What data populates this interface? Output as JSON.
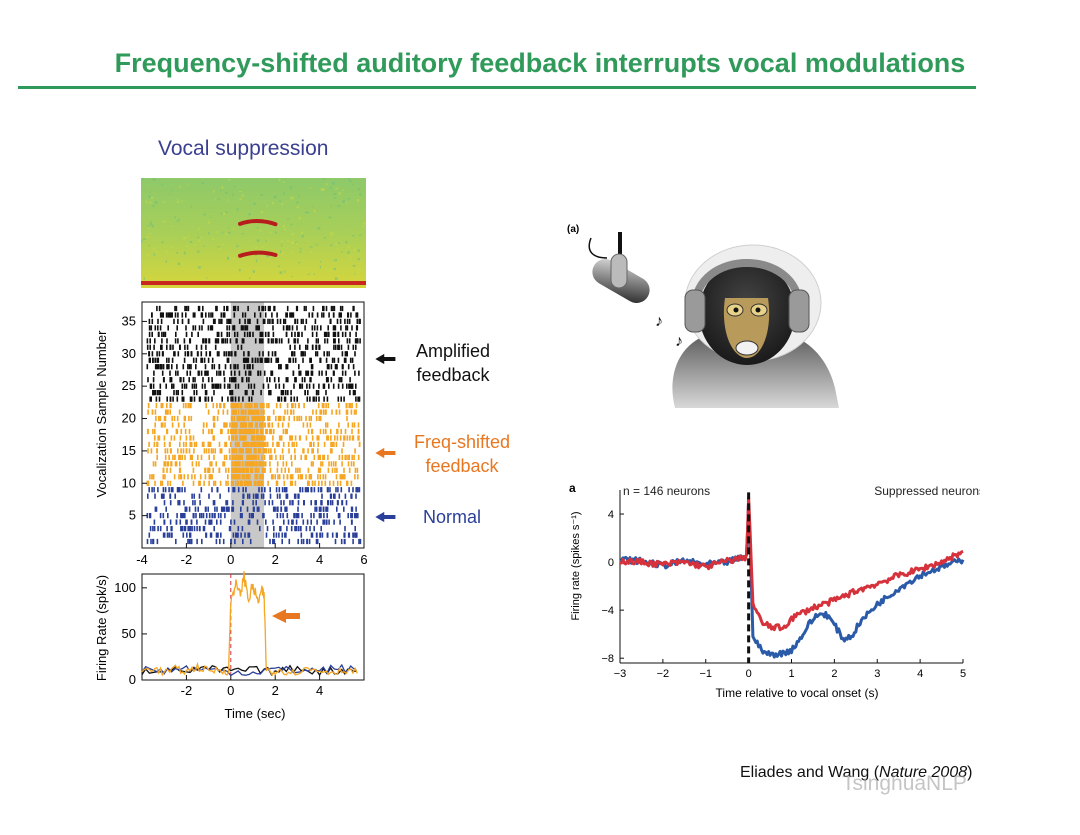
{
  "slide": {
    "title": "Frequency-shifted auditory feedback interrupts vocal modulations",
    "panel_heading": "Vocal suppression",
    "citation_prefix": "Eliades and Wang (",
    "citation_journal": "Nature 2008",
    "citation_suffix": ")",
    "watermark": "TsinghuaNLP"
  },
  "side_labels": {
    "amplified": [
      "Amplified",
      "feedback"
    ],
    "freq_shifted": [
      "Freq-shifted",
      "feedback"
    ],
    "normal": "Normal"
  },
  "colors": {
    "title_green": "#2f9a5a",
    "heading_blue": "#3a3f8f",
    "amplified": "#111111",
    "freq_shifted": "#f5a623",
    "normal": "#2a3f9a",
    "arrow_orange": "#e87722",
    "suppressed_red": "#d6323c",
    "suppressed_blue": "#2a5aa8"
  },
  "illustration": {
    "panel_label": "(a)",
    "icons": [
      "microphone-icon",
      "music-note-icon",
      "monkey-with-headphones"
    ]
  },
  "chart_data": [
    {
      "type": "heatmap",
      "title": "",
      "description_free": true,
      "x_range": [
        -4,
        6
      ],
      "harmonics": [
        {
          "t": [
            0.0,
            1.8
          ],
          "f": [
            0.61,
            0.58
          ]
        },
        {
          "t": [
            0.0,
            1.8
          ],
          "f": [
            0.32,
            0.3
          ]
        }
      ]
    },
    {
      "type": "scatter",
      "title": "",
      "xlabel": "",
      "ylabel": "Vocalization Sample Number",
      "xlim": [
        -4,
        6
      ],
      "ylim": [
        0,
        38
      ],
      "xticks": [
        -4,
        -2,
        0,
        2,
        4,
        6
      ],
      "yticks": [
        5,
        10,
        15,
        20,
        25,
        30,
        35
      ],
      "shaded_region": [
        0,
        1.5
      ],
      "groups": [
        {
          "name": "",
          "color": "#2a3f9a",
          "trials": [
            1,
            9
          ]
        },
        {
          "name": "",
          "color": "#f5a623",
          "trials": [
            10,
            22
          ]
        },
        {
          "name": "",
          "color": "#111111",
          "trials": [
            23,
            37
          ]
        }
      ]
    },
    {
      "type": "line",
      "title": "",
      "xlabel": "Time (sec)",
      "ylabel": "Firing Rate (spk/s)",
      "xlim": [
        -4,
        6
      ],
      "ylim": [
        0,
        115
      ],
      "xticks": [
        -2,
        0,
        2,
        4
      ],
      "yticks": [
        0,
        50,
        100
      ],
      "onset_x": 0,
      "series": [
        {
          "name": "",
          "color": "#f5a623",
          "x": [
            -4,
            -3.5,
            -3,
            -2.5,
            -2,
            -1.5,
            -1,
            -0.5,
            -0.1,
            0,
            0.2,
            0.4,
            0.6,
            0.8,
            1.0,
            1.2,
            1.4,
            1.5,
            1.6,
            1.8,
            2.2,
            2.8,
            3.4,
            4,
            4.6,
            5.2,
            5.8
          ],
          "y": [
            10,
            13,
            8,
            12,
            9,
            14,
            10,
            11,
            9,
            85,
            105,
            92,
            112,
            88,
            102,
            85,
            96,
            90,
            12,
            9,
            11,
            8,
            12,
            10,
            9,
            11,
            8
          ]
        },
        {
          "name": "",
          "color": "#2a3f9a",
          "x": [
            -4,
            -3,
            -2,
            -1,
            0,
            1,
            2,
            3,
            4,
            5,
            5.8
          ],
          "y": [
            12,
            10,
            13,
            11,
            9,
            8,
            12,
            10,
            11,
            13,
            10
          ]
        },
        {
          "name": "",
          "color": "#111111",
          "x": [
            -4,
            -3,
            -2,
            -1,
            0,
            1,
            2,
            3,
            4,
            5,
            5.8
          ],
          "y": [
            9,
            12,
            10,
            12,
            10,
            11,
            9,
            13,
            9,
            10,
            12
          ]
        }
      ]
    },
    {
      "type": "line",
      "panel_label": "a",
      "title": "",
      "annotation_n": "n = 146 neurons",
      "annotation_group": "Suppressed neurons",
      "xlabel": "Time relative to vocal onset (s)",
      "ylabel": "Firing rate (spikes s⁻¹)",
      "xlim": [
        -3,
        5
      ],
      "ylim": [
        -8.4,
        6
      ],
      "xticks": [
        -3,
        -2,
        -1,
        0,
        1,
        2,
        3,
        4,
        5
      ],
      "yticks": [
        4,
        0,
        -4,
        -8
      ],
      "onset_x": 0,
      "series": [
        {
          "name": "",
          "color": "#2a5aa8",
          "x": [
            -3,
            -2.5,
            -2,
            -1.5,
            -1,
            -0.5,
            -0.05,
            0.0,
            0.1,
            0.3,
            0.5,
            0.8,
            1.0,
            1.2,
            1.4,
            1.6,
            1.8,
            2.0,
            2.2,
            2.4,
            2.6,
            3.0,
            3.5,
            4.0,
            4.5,
            5.0
          ],
          "y": [
            0.2,
            0.1,
            -0.3,
            0.1,
            -0.2,
            0.0,
            0.5,
            5.0,
            -6.0,
            -7.4,
            -7.7,
            -7.6,
            -7.3,
            -6.4,
            -5.2,
            -4.4,
            -4.3,
            -5.2,
            -6.4,
            -6.2,
            -5.0,
            -3.5,
            -2.2,
            -1.1,
            -0.4,
            0.2
          ]
        },
        {
          "name": "",
          "color": "#d6323c",
          "x": [
            -3,
            -2.5,
            -2,
            -1.5,
            -1,
            -0.5,
            -0.05,
            0.0,
            0.1,
            0.3,
            0.5,
            0.8,
            1.0,
            1.2,
            1.5,
            2.0,
            2.5,
            3.0,
            3.5,
            4.0,
            4.5,
            5.0
          ],
          "y": [
            0.1,
            0.0,
            -0.2,
            0.0,
            -0.4,
            0.1,
            0.4,
            5.5,
            -3.5,
            -5.0,
            -5.4,
            -5.5,
            -4.7,
            -4.3,
            -3.8,
            -3.2,
            -2.4,
            -1.8,
            -1.1,
            -0.6,
            0.0,
            0.9
          ]
        }
      ]
    }
  ]
}
